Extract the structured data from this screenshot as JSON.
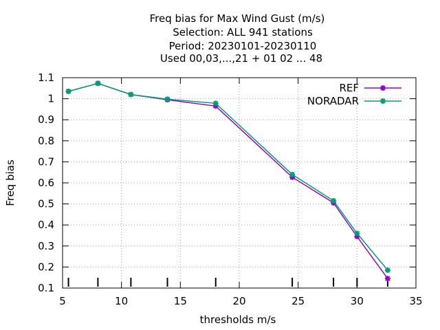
{
  "chart_data": {
    "type": "line",
    "title_lines": [
      "Freq bias  for Max Wind Gust (m/s)",
      "Selection: ALL    941 stations",
      "Period: 20230101-20230110",
      "Used  00,03,...,21  + 01 02 ... 48"
    ],
    "xlabel": "thresholds m/s",
    "ylabel": "Freq bias",
    "xlim": [
      5,
      35
    ],
    "ylim": [
      0.1,
      1.1
    ],
    "x_ticks": [
      "5",
      "10",
      "15",
      "20",
      "25",
      "30",
      "35"
    ],
    "y_ticks": [
      "0.1",
      "0.2",
      "0.3",
      "0.4",
      "0.5",
      "0.6",
      "0.7",
      "0.8",
      "0.9",
      "1",
      "1.1"
    ],
    "grid": true,
    "legend_position": "top-right",
    "threshold_markers": [
      5.5,
      8,
      10.8,
      13.9,
      18,
      24.5,
      28,
      30,
      32.6
    ],
    "series": [
      {
        "name": "REF",
        "color": "#9400d3",
        "x": [
          5.5,
          8,
          10.8,
          13.9,
          18,
          24.5,
          28,
          30,
          32.6
        ],
        "values": [
          1.035,
          1.073,
          1.02,
          0.995,
          0.965,
          0.627,
          0.505,
          0.345,
          0.145
        ]
      },
      {
        "name": "NORADAR",
        "color": "#009e73",
        "x": [
          5.5,
          8,
          10.8,
          13.9,
          18,
          24.5,
          28,
          30,
          32.6
        ],
        "values": [
          1.035,
          1.073,
          1.02,
          0.998,
          0.978,
          0.64,
          0.515,
          0.36,
          0.185
        ]
      }
    ]
  }
}
